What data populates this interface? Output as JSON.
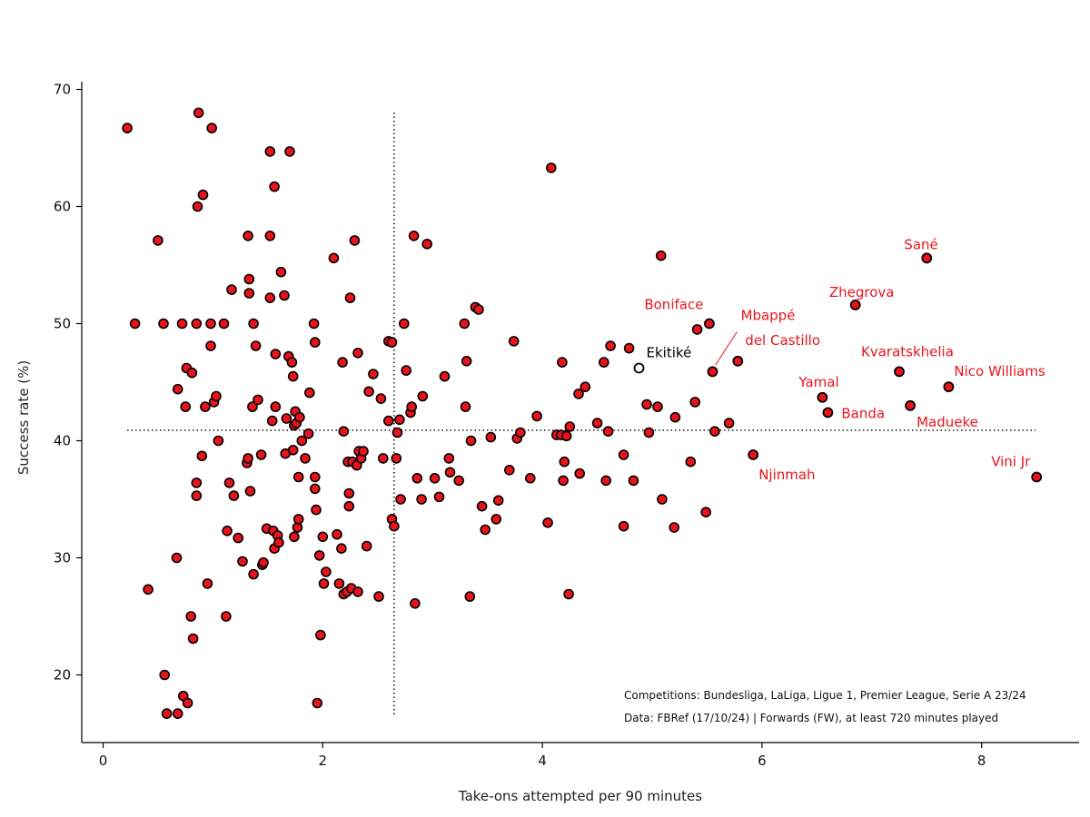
{
  "chart_data": {
    "type": "scatter",
    "title": "",
    "xlabel": "Take-ons attempted per 90 minutes",
    "ylabel": "Success rate (%)",
    "xlim": [
      -0.2,
      9.0
    ],
    "ylim": [
      14.5,
      70.5
    ],
    "xticks": [
      0,
      2,
      4,
      6,
      8
    ],
    "yticks": [
      20,
      30,
      40,
      50,
      60,
      70
    ],
    "grid": false,
    "marker_color": "#e8141c",
    "marker_edge_color": "#000000",
    "highlight_label_color": "#e8141c",
    "reference_lines": {
      "x": 2.65,
      "y": 40.9,
      "style": "dotted"
    },
    "notes": [
      "Competitions: Bundesliga, LaLiga, Ligue 1, Premier League, Serie A 23/24",
      "Data: FBRef (17/10/24) | Forwards (FW), at least 720 minutes played"
    ],
    "labeled_points": [
      {
        "name": "Sané",
        "x": 7.5,
        "y": 55.6,
        "color": "#e8141c"
      },
      {
        "name": "Zhegrova",
        "x": 6.85,
        "y": 51.6,
        "color": "#e8141c"
      },
      {
        "name": "Boniface",
        "x": 5.52,
        "y": 50.0,
        "color": "#e8141c"
      },
      {
        "name": "Mbappé",
        "x": 5.55,
        "y": 45.9,
        "color": "#e8141c"
      },
      {
        "name": "del Castillo",
        "x": 5.78,
        "y": 46.8,
        "color": "#e8141c"
      },
      {
        "name": "Kvaratskhelia",
        "x": 7.25,
        "y": 45.9,
        "color": "#e8141c"
      },
      {
        "name": "Nico Williams",
        "x": 7.7,
        "y": 44.6,
        "color": "#e8141c"
      },
      {
        "name": "Yamal",
        "x": 6.55,
        "y": 43.7,
        "color": "#e8141c"
      },
      {
        "name": "Banda",
        "x": 6.6,
        "y": 42.4,
        "color": "#e8141c"
      },
      {
        "name": "Madueke",
        "x": 7.35,
        "y": 43.0,
        "color": "#e8141c"
      },
      {
        "name": "Njinmah",
        "x": 5.92,
        "y": 38.8,
        "color": "#e8141c"
      },
      {
        "name": "Vini Jr",
        "x": 8.5,
        "y": 36.9,
        "color": "#e8141c"
      },
      {
        "name": "Ekitiké",
        "x": 4.88,
        "y": 46.2,
        "color": "#000000",
        "hollow": true
      }
    ],
    "points": [
      [
        0.22,
        66.7
      ],
      [
        0.29,
        50.0
      ],
      [
        0.41,
        27.3
      ],
      [
        0.5,
        57.1
      ],
      [
        0.55,
        50.0
      ],
      [
        0.56,
        20.0
      ],
      [
        0.58,
        16.7
      ],
      [
        0.67,
        30.0
      ],
      [
        0.68,
        44.4
      ],
      [
        0.68,
        16.7
      ],
      [
        0.72,
        50.0
      ],
      [
        0.73,
        18.2
      ],
      [
        0.75,
        42.9
      ],
      [
        0.76,
        46.2
      ],
      [
        0.77,
        17.6
      ],
      [
        0.8,
        25.0
      ],
      [
        0.81,
        45.8
      ],
      [
        0.82,
        23.1
      ],
      [
        0.85,
        36.4
      ],
      [
        0.85,
        35.3
      ],
      [
        0.85,
        50.0
      ],
      [
        0.86,
        60.0
      ],
      [
        0.87,
        68.0
      ],
      [
        0.9,
        38.7
      ],
      [
        0.91,
        61.0
      ],
      [
        0.93,
        42.9
      ],
      [
        0.95,
        27.8
      ],
      [
        0.98,
        50.0
      ],
      [
        0.98,
        48.1
      ],
      [
        0.99,
        66.7
      ],
      [
        1.01,
        43.3
      ],
      [
        1.03,
        43.8
      ],
      [
        1.05,
        40.0
      ],
      [
        1.1,
        50.0
      ],
      [
        1.12,
        25.0
      ],
      [
        1.13,
        32.3
      ],
      [
        1.15,
        36.4
      ],
      [
        1.17,
        52.9
      ],
      [
        1.19,
        35.3
      ],
      [
        1.23,
        31.7
      ],
      [
        1.27,
        29.7
      ],
      [
        1.31,
        38.1
      ],
      [
        1.32,
        38.5
      ],
      [
        1.32,
        57.5
      ],
      [
        1.33,
        53.8
      ],
      [
        1.33,
        52.6
      ],
      [
        1.34,
        35.7
      ],
      [
        1.36,
        42.9
      ],
      [
        1.37,
        28.6
      ],
      [
        1.37,
        50.0
      ],
      [
        1.39,
        48.1
      ],
      [
        1.41,
        43.5
      ],
      [
        1.44,
        38.8
      ],
      [
        1.45,
        29.4
      ],
      [
        1.46,
        29.6
      ],
      [
        1.49,
        32.5
      ],
      [
        1.52,
        52.2
      ],
      [
        1.52,
        57.5
      ],
      [
        1.52,
        64.7
      ],
      [
        1.54,
        41.7
      ],
      [
        1.55,
        32.3
      ],
      [
        1.56,
        61.7
      ],
      [
        1.56,
        30.8
      ],
      [
        1.57,
        42.9
      ],
      [
        1.57,
        47.4
      ],
      [
        1.59,
        31.9
      ],
      [
        1.6,
        31.3
      ],
      [
        1.62,
        54.4
      ],
      [
        1.65,
        52.4
      ],
      [
        1.66,
        38.9
      ],
      [
        1.67,
        41.9
      ],
      [
        1.69,
        47.2
      ],
      [
        1.7,
        64.7
      ],
      [
        1.72,
        46.7
      ],
      [
        1.73,
        45.5
      ],
      [
        1.73,
        39.2
      ],
      [
        1.74,
        41.3
      ],
      [
        1.74,
        31.8
      ],
      [
        1.75,
        42.5
      ],
      [
        1.76,
        41.5
      ],
      [
        1.77,
        32.6
      ],
      [
        1.78,
        36.9
      ],
      [
        1.78,
        33.3
      ],
      [
        1.79,
        42.0
      ],
      [
        1.81,
        40.0
      ],
      [
        1.84,
        38.5
      ],
      [
        1.87,
        40.6
      ],
      [
        1.88,
        44.1
      ],
      [
        1.92,
        50.0
      ],
      [
        1.93,
        48.4
      ],
      [
        1.93,
        35.9
      ],
      [
        1.93,
        36.9
      ],
      [
        1.94,
        34.1
      ],
      [
        1.95,
        17.6
      ],
      [
        1.97,
        30.2
      ],
      [
        1.98,
        23.4
      ],
      [
        2.0,
        31.8
      ],
      [
        2.01,
        27.8
      ],
      [
        2.03,
        28.8
      ],
      [
        2.1,
        55.6
      ],
      [
        2.13,
        32.0
      ],
      [
        2.15,
        27.8
      ],
      [
        2.17,
        30.8
      ],
      [
        2.18,
        46.7
      ],
      [
        2.19,
        40.8
      ],
      [
        2.19,
        26.9
      ],
      [
        2.22,
        27.1
      ],
      [
        2.23,
        38.2
      ],
      [
        2.24,
        35.5
      ],
      [
        2.24,
        34.4
      ],
      [
        2.25,
        52.2
      ],
      [
        2.26,
        27.4
      ],
      [
        2.27,
        38.2
      ],
      [
        2.29,
        57.1
      ],
      [
        2.31,
        37.9
      ],
      [
        2.32,
        27.1
      ],
      [
        2.32,
        47.5
      ],
      [
        2.33,
        39.1
      ],
      [
        2.35,
        38.5
      ],
      [
        2.37,
        39.1
      ],
      [
        2.4,
        31.0
      ],
      [
        2.42,
        44.2
      ],
      [
        2.46,
        45.7
      ],
      [
        2.51,
        26.7
      ],
      [
        2.53,
        43.6
      ],
      [
        2.55,
        38.5
      ],
      [
        2.6,
        41.7
      ],
      [
        2.6,
        48.5
      ],
      [
        2.63,
        48.4
      ],
      [
        2.63,
        33.3
      ],
      [
        2.65,
        32.7
      ],
      [
        2.67,
        38.5
      ],
      [
        2.68,
        40.7
      ],
      [
        2.7,
        41.8
      ],
      [
        2.71,
        35.0
      ],
      [
        2.74,
        50.0
      ],
      [
        2.76,
        46.0
      ],
      [
        2.8,
        42.4
      ],
      [
        2.81,
        42.9
      ],
      [
        2.83,
        57.5
      ],
      [
        2.84,
        26.1
      ],
      [
        2.86,
        36.8
      ],
      [
        2.9,
        35.0
      ],
      [
        2.91,
        43.8
      ],
      [
        2.95,
        56.8
      ],
      [
        3.02,
        36.8
      ],
      [
        3.06,
        35.2
      ],
      [
        3.11,
        45.5
      ],
      [
        3.15,
        38.5
      ],
      [
        3.16,
        37.3
      ],
      [
        3.24,
        36.6
      ],
      [
        3.29,
        50.0
      ],
      [
        3.3,
        42.9
      ],
      [
        3.31,
        46.8
      ],
      [
        3.34,
        26.7
      ],
      [
        3.35,
        40.0
      ],
      [
        3.39,
        51.4
      ],
      [
        3.42,
        51.2
      ],
      [
        3.45,
        34.4
      ],
      [
        3.48,
        32.4
      ],
      [
        3.53,
        40.3
      ],
      [
        3.58,
        33.3
      ],
      [
        3.6,
        34.9
      ],
      [
        3.7,
        37.5
      ],
      [
        3.74,
        48.5
      ],
      [
        3.77,
        40.2
      ],
      [
        3.8,
        40.7
      ],
      [
        3.89,
        36.8
      ],
      [
        3.95,
        42.1
      ],
      [
        4.05,
        33.0
      ],
      [
        4.08,
        63.3
      ],
      [
        4.13,
        40.5
      ],
      [
        4.17,
        40.5
      ],
      [
        4.18,
        46.7
      ],
      [
        4.19,
        36.6
      ],
      [
        4.2,
        38.2
      ],
      [
        4.22,
        40.4
      ],
      [
        4.24,
        26.9
      ],
      [
        4.25,
        41.2
      ],
      [
        4.33,
        44.0
      ],
      [
        4.34,
        37.2
      ],
      [
        4.39,
        44.6
      ],
      [
        4.5,
        41.5
      ],
      [
        4.56,
        46.7
      ],
      [
        4.58,
        36.6
      ],
      [
        4.6,
        40.8
      ],
      [
        4.62,
        48.1
      ],
      [
        4.74,
        32.7
      ],
      [
        4.74,
        38.8
      ],
      [
        4.79,
        47.9
      ],
      [
        4.83,
        36.6
      ],
      [
        4.95,
        43.1
      ],
      [
        4.97,
        40.7
      ],
      [
        5.05,
        42.9
      ],
      [
        5.08,
        55.8
      ],
      [
        5.09,
        35.0
      ],
      [
        5.2,
        32.6
      ],
      [
        5.21,
        42.0
      ],
      [
        5.35,
        38.2
      ],
      [
        5.39,
        43.3
      ],
      [
        5.41,
        49.5
      ],
      [
        5.49,
        33.9
      ],
      [
        5.57,
        40.8
      ],
      [
        5.7,
        41.5
      ]
    ]
  }
}
